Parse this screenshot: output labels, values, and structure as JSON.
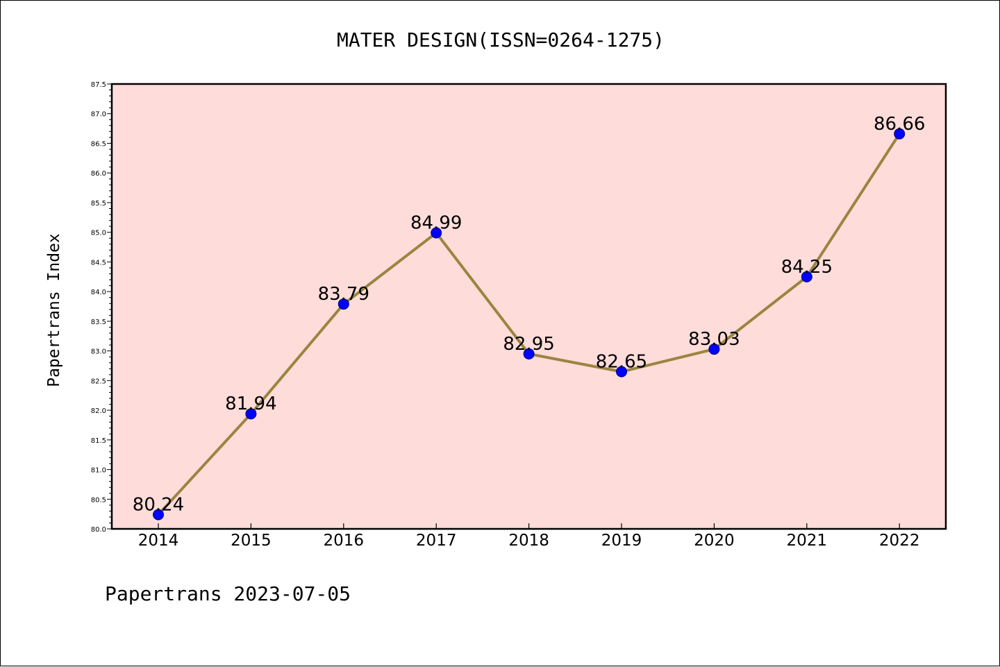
{
  "chart_data": {
    "type": "line",
    "title": "MATER DESIGN(ISSN=0264-1275)",
    "ylabel": "Papertrans Index",
    "xlabel": "",
    "categories": [
      "2014",
      "2015",
      "2016",
      "2017",
      "2018",
      "2019",
      "2020",
      "2021",
      "2022"
    ],
    "series": [
      {
        "values": [
          80.24,
          81.94,
          83.79,
          84.99,
          82.95,
          82.65,
          83.03,
          84.25,
          86.66
        ],
        "data_labels": [
          "80.24",
          "81.94",
          "83.79",
          "84.99",
          "82.95",
          "82.65",
          "83.03",
          "84.25",
          "86.66"
        ]
      }
    ],
    "ylim": [
      80.0,
      87.5
    ],
    "yticks": [
      "80.0",
      "80.5",
      "81.0",
      "81.5",
      "82.0",
      "82.5",
      "83.0",
      "83.5",
      "84.0",
      "84.5",
      "85.0",
      "85.5",
      "86.0",
      "86.5",
      "87.0",
      "87.5"
    ],
    "grid": false,
    "legend": "none",
    "colors": {
      "plot_background": "#fddcd9",
      "line": "#9a8540",
      "marker": "#0000ff",
      "marker_edge": "#00007a"
    }
  },
  "footer": "Papertrans 2023-07-05"
}
